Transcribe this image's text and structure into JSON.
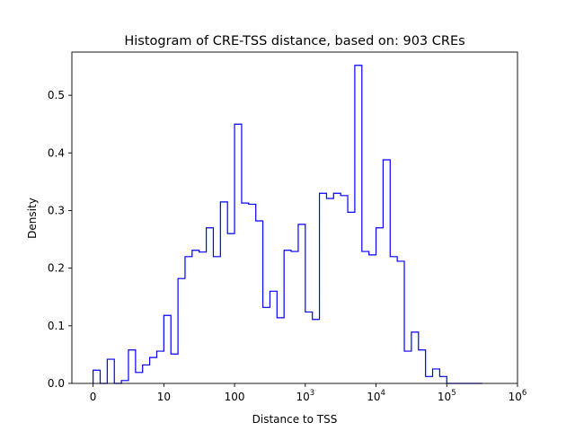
{
  "chart_data": {
    "type": "histogram-step",
    "title": "Histogram of CRE-TSS distance, based on: 903 CREs",
    "xlabel": "Distance to TSS",
    "ylabel": "Density",
    "x_scale": "symlog",
    "xlim": [
      -0.3,
      6
    ],
    "ylim": [
      0,
      0.575
    ],
    "x_ticks": [
      {
        "pos": 0,
        "base": "0",
        "exp": ""
      },
      {
        "pos": 1,
        "base": "10",
        "exp": ""
      },
      {
        "pos": 2,
        "base": "100",
        "exp": ""
      },
      {
        "pos": 3,
        "base": "10",
        "exp": "3"
      },
      {
        "pos": 4,
        "base": "10",
        "exp": "4"
      },
      {
        "pos": 5,
        "base": "10",
        "exp": "5"
      },
      {
        "pos": 6,
        "base": "10",
        "exp": "6"
      }
    ],
    "y_ticks": [
      "0.0",
      "0.1",
      "0.2",
      "0.3",
      "0.4",
      "0.5"
    ],
    "grid": false,
    "legend": "none",
    "color": "#0000ff",
    "bin_edges": [
      0.0,
      0.1,
      0.2,
      0.3,
      0.4,
      0.5,
      0.6,
      0.7,
      0.8,
      0.9,
      1.0,
      1.1,
      1.2,
      1.3,
      1.4,
      1.5,
      1.6,
      1.7,
      1.8,
      1.9,
      2.0,
      2.1,
      2.2,
      2.3,
      2.4,
      2.5,
      2.6,
      2.7,
      2.8,
      2.9,
      3.0,
      3.1,
      3.2,
      3.3,
      3.4,
      3.5,
      3.6,
      3.7,
      3.8,
      3.9,
      4.0,
      4.1,
      4.2,
      4.3,
      4.4,
      4.5,
      4.6,
      4.7,
      4.8,
      4.9,
      5.0,
      5.1,
      5.2,
      5.3,
      5.4,
      5.5
    ],
    "densities": [
      0.023,
      0.0,
      0.042,
      0.0,
      0.005,
      0.058,
      0.019,
      0.032,
      0.045,
      0.056,
      0.118,
      0.051,
      0.182,
      0.22,
      0.231,
      0.228,
      0.27,
      0.22,
      0.315,
      0.26,
      0.45,
      0.313,
      0.311,
      0.282,
      0.132,
      0.16,
      0.114,
      0.231,
      0.229,
      0.276,
      0.124,
      0.111,
      0.33,
      0.321,
      0.33,
      0.326,
      0.297,
      0.552,
      0.229,
      0.223,
      0.27,
      0.388,
      0.22,
      0.212,
      0.056,
      0.089,
      0.058,
      0.012,
      0.025,
      0.012,
      0.0,
      0.0,
      0.0,
      0.0,
      0.0
    ]
  }
}
